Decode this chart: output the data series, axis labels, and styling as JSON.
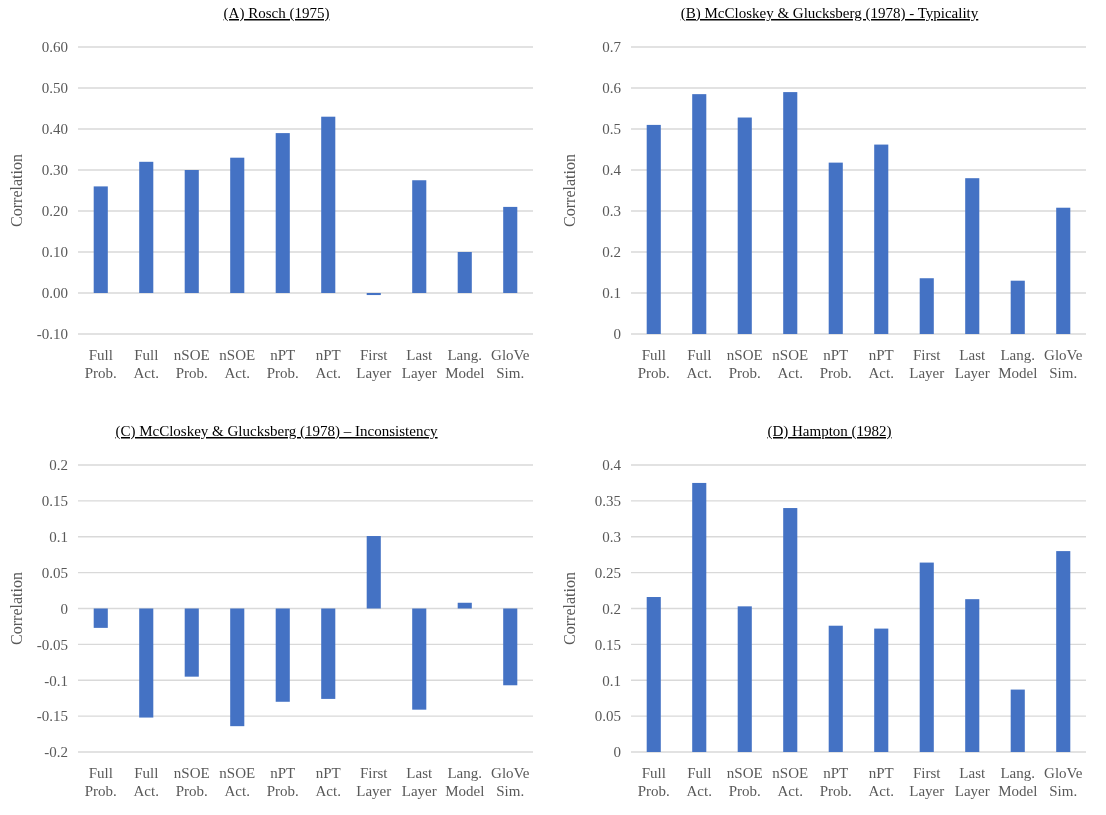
{
  "chart_data": [
    {
      "type": "bar",
      "title": "(A) Rosch (1975)",
      "ylabel": "Correlation",
      "categories": [
        "Full\nProb.",
        "Full\nAct.",
        "nSOE\nProb.",
        "nSOE\nAct.",
        "nPT\nProb.",
        "nPT\nAct.",
        "First\nLayer",
        "Last\nLayer",
        "Lang.\nModel",
        "GloVe\nSim."
      ],
      "values": [
        0.26,
        0.32,
        0.3,
        0.33,
        0.39,
        0.43,
        -0.005,
        0.275,
        0.1,
        0.21
      ],
      "color": "#4472c4",
      "ylim": [
        -0.1,
        0.6
      ],
      "yticks": [
        {
          "value": -0.1,
          "label": "-0.10"
        },
        {
          "value": 0,
          "label": "0.00"
        },
        {
          "value": 0.1,
          "label": "0.10"
        },
        {
          "value": 0.2,
          "label": "0.20"
        },
        {
          "value": 0.3,
          "label": "0.30"
        },
        {
          "value": 0.4,
          "label": "0.40"
        },
        {
          "value": 0.5,
          "label": "0.50"
        },
        {
          "value": 0.6,
          "label": "0.60"
        }
      ],
      "grid": "y"
    },
    {
      "type": "bar",
      "title": "(B) McCloskey & Glucksberg (1978) - Typicality",
      "ylabel": "Correlation",
      "categories": [
        "Full\nProb.",
        "Full\nAct.",
        "nSOE\nProb.",
        "nSOE\nAct.",
        "nPT\nProb.",
        "nPT\nAct.",
        "First\nLayer",
        "Last\nLayer",
        "Lang.\nModel",
        "GloVe\nSim."
      ],
      "values": [
        0.51,
        0.585,
        0.528,
        0.59,
        0.418,
        0.462,
        0.136,
        0.38,
        0.13,
        0.308
      ],
      "color": "#4472c4",
      "ylim": [
        0,
        0.7
      ],
      "yticks": [
        0,
        0.1,
        0.2,
        0.3,
        0.4,
        0.5,
        0.6,
        0.7
      ],
      "grid": "y"
    },
    {
      "type": "bar",
      "title": "(C) McCloskey & Glucksberg (1978) – Inconsistency",
      "ylabel": "Correlation",
      "categories": [
        "Full\nProb.",
        "Full\nAct.",
        "nSOE\nProb.",
        "nSOE\nAct.",
        "nPT\nProb.",
        "nPT\nAct.",
        "First\nLayer",
        "Last\nLayer",
        "Lang.\nModel",
        "GloVe\nSim."
      ],
      "values": [
        -0.027,
        -0.152,
        -0.095,
        -0.164,
        -0.13,
        -0.126,
        0.101,
        -0.141,
        0.008,
        -0.107
      ],
      "color": "#4472c4",
      "ylim": [
        -0.2,
        0.2
      ],
      "yticks": [
        -0.2,
        -0.15,
        -0.1,
        -0.05,
        0,
        0.05,
        0.1,
        0.15,
        0.2
      ],
      "grid": "y"
    },
    {
      "type": "bar",
      "title": "(D) Hampton (1982)",
      "ylabel": "Correlation",
      "categories": [
        "Full\nProb.",
        "Full\nAct.",
        "nSOE\nProb.",
        "nSOE\nAct.",
        "nPT\nProb.",
        "nPT\nAct.",
        "First\nLayer",
        "Last\nLayer",
        "Lang.\nModel",
        "GloVe\nSim."
      ],
      "values": [
        0.216,
        0.375,
        0.203,
        0.34,
        0.176,
        0.172,
        0.264,
        0.213,
        0.087,
        0.28
      ],
      "color": "#4472c4",
      "ylim": [
        0,
        0.4
      ],
      "yticks": [
        0,
        0.05,
        0.1,
        0.15,
        0.2,
        0.25,
        0.3,
        0.35,
        0.4
      ],
      "grid": "y"
    }
  ]
}
